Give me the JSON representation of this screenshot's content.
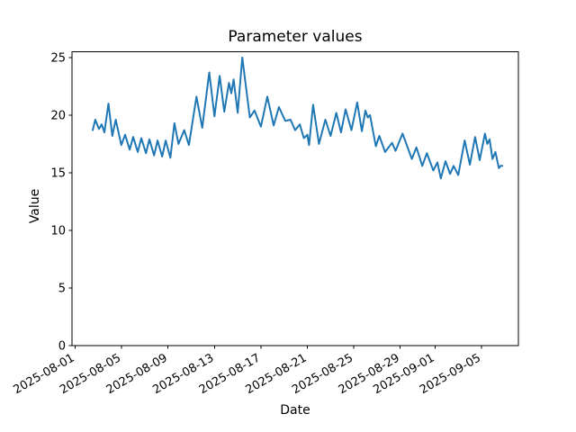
{
  "chart_data": {
    "type": "line",
    "title": "Parameter values",
    "xlabel": "Date",
    "ylabel": "Value",
    "grid": false,
    "legend": null,
    "line_color": "#1f77b4",
    "frame_color": "#000000",
    "text_color": "#000000",
    "background_color": "#ffffff",
    "x_unit": "days since 2025-08-01 00:00",
    "xlim": [
      -0.27,
      38.18
    ],
    "ylim": [
      0,
      25.5
    ],
    "yticks": [
      0,
      5,
      10,
      15,
      20,
      25
    ],
    "xticks": [
      {
        "t": 0,
        "label": "2025-08-01"
      },
      {
        "t": 4,
        "label": "2025-08-05"
      },
      {
        "t": 8,
        "label": "2025-08-09"
      },
      {
        "t": 12,
        "label": "2025-08-13"
      },
      {
        "t": 16,
        "label": "2025-08-17"
      },
      {
        "t": 20,
        "label": "2025-08-21"
      },
      {
        "t": 24,
        "label": "2025-08-25"
      },
      {
        "t": 28,
        "label": "2025-08-29"
      },
      {
        "t": 31,
        "label": "2025-09-01"
      },
      {
        "t": 35,
        "label": "2025-09-05"
      }
    ],
    "xtick_rotation_deg": -30,
    "series": [
      {
        "name": "parameter-values",
        "points": [
          [
            1.51,
            18.7
          ],
          [
            1.74,
            19.6
          ],
          [
            2.05,
            18.8
          ],
          [
            2.29,
            19.2
          ],
          [
            2.52,
            18.5
          ],
          [
            2.87,
            21.0
          ],
          [
            3.2,
            18.2
          ],
          [
            3.5,
            19.6
          ],
          [
            3.98,
            17.4
          ],
          [
            4.3,
            18.3
          ],
          [
            4.7,
            17.0
          ],
          [
            5.0,
            18.1
          ],
          [
            5.4,
            16.8
          ],
          [
            5.7,
            18.0
          ],
          [
            6.1,
            16.7
          ],
          [
            6.4,
            17.9
          ],
          [
            6.8,
            16.5
          ],
          [
            7.1,
            17.8
          ],
          [
            7.5,
            16.4
          ],
          [
            7.8,
            17.8
          ],
          [
            8.2,
            16.3
          ],
          [
            8.55,
            19.3
          ],
          [
            8.9,
            17.5
          ],
          [
            9.4,
            18.7
          ],
          [
            9.8,
            17.4
          ],
          [
            10.45,
            21.6
          ],
          [
            10.95,
            18.9
          ],
          [
            11.55,
            23.7
          ],
          [
            12.0,
            19.9
          ],
          [
            12.45,
            23.4
          ],
          [
            12.85,
            20.3
          ],
          [
            13.25,
            22.8
          ],
          [
            13.45,
            21.9
          ],
          [
            13.65,
            23.1
          ],
          [
            14.0,
            20.2
          ],
          [
            14.4,
            25.0
          ],
          [
            15.05,
            19.8
          ],
          [
            15.45,
            20.4
          ],
          [
            16.0,
            19.0
          ],
          [
            16.55,
            21.6
          ],
          [
            17.1,
            19.1
          ],
          [
            17.55,
            20.7
          ],
          [
            18.1,
            19.5
          ],
          [
            18.55,
            19.6
          ],
          [
            18.95,
            18.7
          ],
          [
            19.35,
            19.2
          ],
          [
            19.7,
            18.0
          ],
          [
            20.0,
            18.3
          ],
          [
            20.15,
            17.4
          ],
          [
            20.5,
            20.9
          ],
          [
            21.0,
            17.5
          ],
          [
            21.55,
            19.6
          ],
          [
            22.0,
            18.2
          ],
          [
            22.5,
            20.2
          ],
          [
            22.9,
            18.5
          ],
          [
            23.3,
            20.5
          ],
          [
            23.8,
            18.7
          ],
          [
            24.3,
            21.1
          ],
          [
            24.7,
            18.6
          ],
          [
            25.0,
            20.4
          ],
          [
            25.2,
            19.8
          ],
          [
            25.4,
            20.0
          ],
          [
            25.9,
            17.3
          ],
          [
            26.2,
            18.2
          ],
          [
            26.7,
            16.8
          ],
          [
            27.3,
            17.6
          ],
          [
            27.6,
            16.9
          ],
          [
            28.2,
            18.4
          ],
          [
            29.0,
            16.2
          ],
          [
            29.4,
            17.2
          ],
          [
            29.9,
            15.6
          ],
          [
            30.3,
            16.7
          ],
          [
            30.85,
            15.2
          ],
          [
            31.2,
            15.9
          ],
          [
            31.5,
            14.5
          ],
          [
            31.9,
            16.0
          ],
          [
            32.3,
            14.9
          ],
          [
            32.6,
            15.6
          ],
          [
            33.0,
            14.8
          ],
          [
            33.55,
            17.8
          ],
          [
            34.0,
            15.7
          ],
          [
            34.45,
            18.1
          ],
          [
            34.85,
            16.1
          ],
          [
            35.3,
            18.4
          ],
          [
            35.5,
            17.5
          ],
          [
            35.7,
            17.9
          ],
          [
            35.95,
            16.2
          ],
          [
            36.2,
            16.8
          ],
          [
            36.5,
            15.4
          ],
          [
            36.65,
            15.6
          ],
          [
            36.8,
            15.6
          ]
        ]
      }
    ]
  }
}
